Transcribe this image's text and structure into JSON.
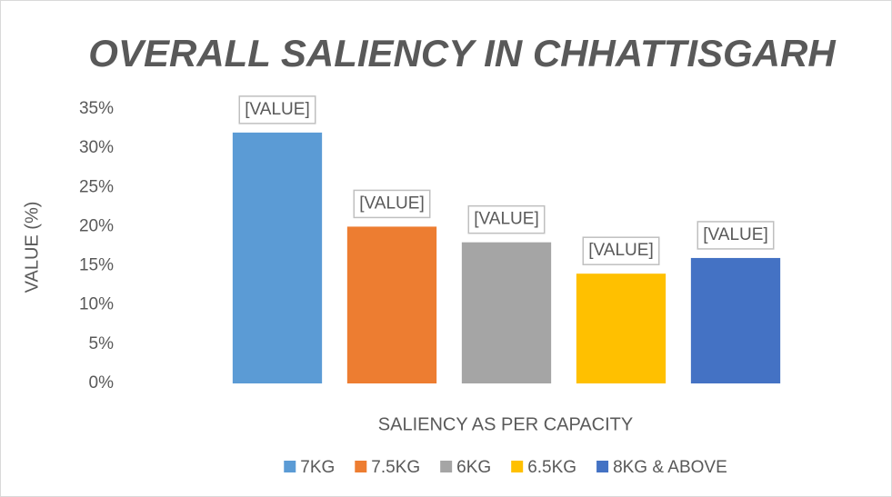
{
  "chart_data": {
    "type": "bar",
    "title": "OVERALL SALIENCY IN CHHATTISGARH",
    "x_label": "SALIENCY AS PER CAPACITY",
    "y_label": "VALUE (%)",
    "categories": [
      "7KG",
      "7.5KG",
      "6KG",
      "6.5KG",
      "8KG & ABOVE"
    ],
    "values": [
      32,
      20,
      18,
      14,
      16
    ],
    "value_labels": [
      "[VALUE]",
      "[VALUE]",
      "[VALUE]",
      "[VALUE]",
      "[VALUE]"
    ],
    "colors": [
      "#5b9bd5",
      "#ed7d31",
      "#a5a5a5",
      "#ffc000",
      "#4472c4"
    ],
    "ylim": [
      0,
      35
    ],
    "yticks": [
      {
        "value": 0,
        "label": "0%"
      },
      {
        "value": 5,
        "label": "5%"
      },
      {
        "value": 10,
        "label": "10%"
      },
      {
        "value": 15,
        "label": "15%"
      },
      {
        "value": 20,
        "label": "20%"
      },
      {
        "value": 25,
        "label": "25%"
      },
      {
        "value": 30,
        "label": "30%"
      },
      {
        "value": 35,
        "label": "35%"
      }
    ],
    "grid": false
  }
}
